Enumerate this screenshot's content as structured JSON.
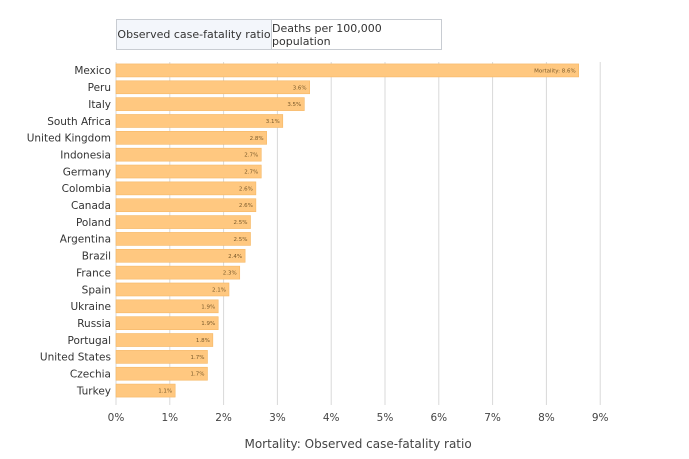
{
  "tabs": [
    {
      "label": "Observed case-fatality ratio",
      "active": true
    },
    {
      "label": "Deaths per 100,000 population",
      "active": false
    }
  ],
  "chart_data": {
    "type": "bar",
    "orientation": "horizontal",
    "categories": [
      "Mexico",
      "Peru",
      "Italy",
      "South Africa",
      "United Kingdom",
      "Indonesia",
      "Germany",
      "Colombia",
      "Canada",
      "Poland",
      "Argentina",
      "Brazil",
      "France",
      "Spain",
      "Ukraine",
      "Russia",
      "Portugal",
      "United States",
      "Czechia",
      "Turkey"
    ],
    "values": [
      8.6,
      3.6,
      3.5,
      3.1,
      2.8,
      2.7,
      2.7,
      2.6,
      2.6,
      2.5,
      2.5,
      2.4,
      2.3,
      2.1,
      1.9,
      1.9,
      1.8,
      1.7,
      1.7,
      1.1
    ],
    "value_labels": [
      "Mortality: 8.6%",
      "3.6%",
      "3.5%",
      "3.1%",
      "2.8%",
      "2.7%",
      "2.7%",
      "2.6%",
      "2.6%",
      "2.5%",
      "2.5%",
      "2.4%",
      "2.3%",
      "2.1%",
      "1.9%",
      "1.9%",
      "1.8%",
      "1.7%",
      "1.7%",
      "1.1%"
    ],
    "xticks": [
      "0%",
      "1%",
      "2%",
      "3%",
      "4%",
      "5%",
      "6%",
      "7%",
      "8%",
      "9%"
    ],
    "xlim": [
      0,
      9
    ],
    "xlabel": "Mortality: Observed case-fatality ratio",
    "grid": true,
    "colors": {
      "bar": "#ffc880",
      "bar_stroke": "#f5b764",
      "grid": "#d9d9d9"
    }
  }
}
